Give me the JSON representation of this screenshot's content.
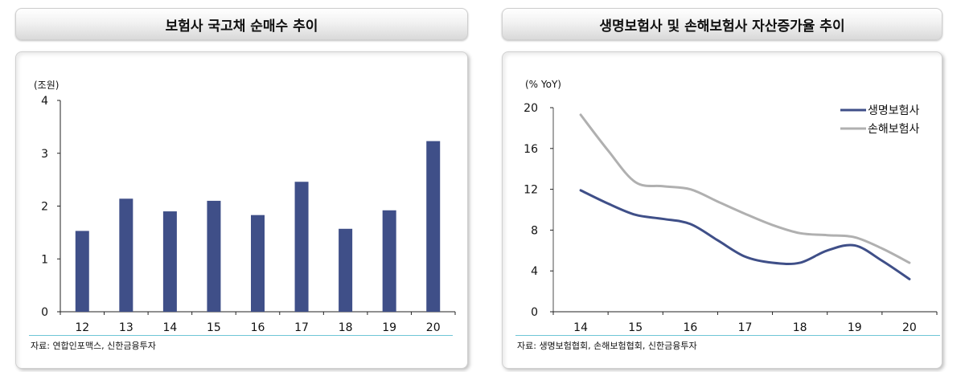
{
  "left": {
    "title": "보험사 국고채 순매수 추이",
    "unit": "(조원)",
    "source": "자료: 연합인포맥스, 신한금융투자",
    "bar_color": "#3f4f88"
  },
  "right": {
    "title": "생명보험사 및 손해보험사 자산증가율 추이",
    "unit": "(% YoY)",
    "source": "자료: 생명보험협회, 손해보험협회, 신한금융투자",
    "legend": [
      {
        "label": "생명보험사",
        "color": "#3f4f88"
      },
      {
        "label": "손해보험사",
        "color": "#b0b0b0"
      }
    ]
  },
  "chart_data": [
    {
      "type": "bar",
      "title": "보험사 국고채 순매수 추이",
      "xlabel": "",
      "ylabel": "(조원)",
      "categories": [
        "12",
        "13",
        "14",
        "15",
        "16",
        "17",
        "18",
        "19",
        "20"
      ],
      "values": [
        1.53,
        2.14,
        1.9,
        2.1,
        1.83,
        2.46,
        1.57,
        1.92,
        3.23
      ],
      "ylim": [
        0,
        4
      ],
      "yticks": [
        0,
        1,
        2,
        3,
        4
      ],
      "grid": false,
      "legend": null
    },
    {
      "type": "line",
      "title": "생명보험사 및 손해보험사 자산증가율 추이",
      "xlabel": "",
      "ylabel": "(% YoY)",
      "categories": [
        "14",
        "15",
        "16",
        "17",
        "18",
        "19",
        "20"
      ],
      "x": [
        14.0,
        14.5,
        15.0,
        15.5,
        16.0,
        16.5,
        17.0,
        17.5,
        18.0,
        18.5,
        19.0,
        19.5,
        20.0
      ],
      "series": [
        {
          "name": "생명보험사",
          "values": [
            11.9,
            10.6,
            9.5,
            9.1,
            8.6,
            7.0,
            5.4,
            4.8,
            4.8,
            6.0,
            6.5,
            5.0,
            3.2
          ]
        },
        {
          "name": "손해보험사",
          "values": [
            19.3,
            15.8,
            12.7,
            12.3,
            12.0,
            10.8,
            9.6,
            8.5,
            7.7,
            7.5,
            7.3,
            6.2,
            4.8
          ]
        }
      ],
      "ylim": [
        0,
        20
      ],
      "yticks": [
        0,
        4,
        8,
        12,
        16,
        20
      ],
      "grid": false,
      "legend_position": "top-right"
    }
  ]
}
